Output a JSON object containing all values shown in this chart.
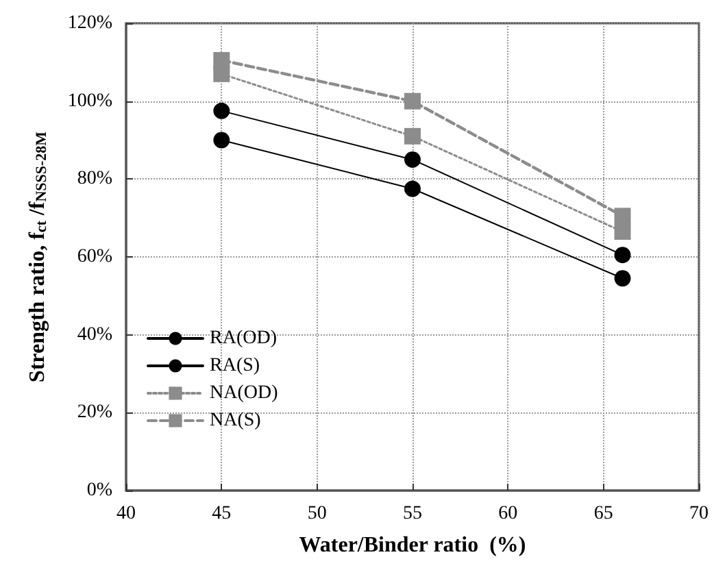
{
  "chart_data": {
    "type": "line",
    "xlabel": "Water/Binder ratio  (%)",
    "ylabel": "Strength ratio, f$_{ct}$ /f$_{NSSS-28M}$",
    "x": [
      45,
      55,
      66
    ],
    "series": [
      {
        "name": "RA(OD)",
        "color": "#000000",
        "values": [
          97.5,
          85,
          60.5
        ],
        "marker": "circle",
        "line_style": "solid"
      },
      {
        "name": "RA(S)",
        "color": "#000000",
        "values": [
          90,
          77.5,
          54.5
        ],
        "marker": "circle",
        "line_style": "solid"
      },
      {
        "name": "NA(OD)",
        "color": "#8c8c8c",
        "values": [
          107,
          91,
          66.5
        ],
        "marker": "square",
        "line_style": "dotted"
      },
      {
        "name": "NA(S)",
        "color": "#8c8c8c",
        "values": [
          110.5,
          100,
          70.5
        ],
        "marker": "square",
        "line_style": "dashed"
      }
    ],
    "xlim": [
      40,
      70
    ],
    "xticks": [
      40,
      45,
      50,
      55,
      60,
      65,
      70
    ],
    "ylim": [
      0,
      120
    ],
    "yticks": [
      {
        "value": 0,
        "label": "0%"
      },
      {
        "value": 20,
        "label": "20%"
      },
      {
        "value": 40,
        "label": "40%"
      },
      {
        "value": 60,
        "label": "60%"
      },
      {
        "value": 80,
        "label": "80%"
      },
      {
        "value": 100,
        "label": "100%"
      },
      {
        "value": 120,
        "label": "120%"
      }
    ],
    "grid": true,
    "legend": "left"
  }
}
